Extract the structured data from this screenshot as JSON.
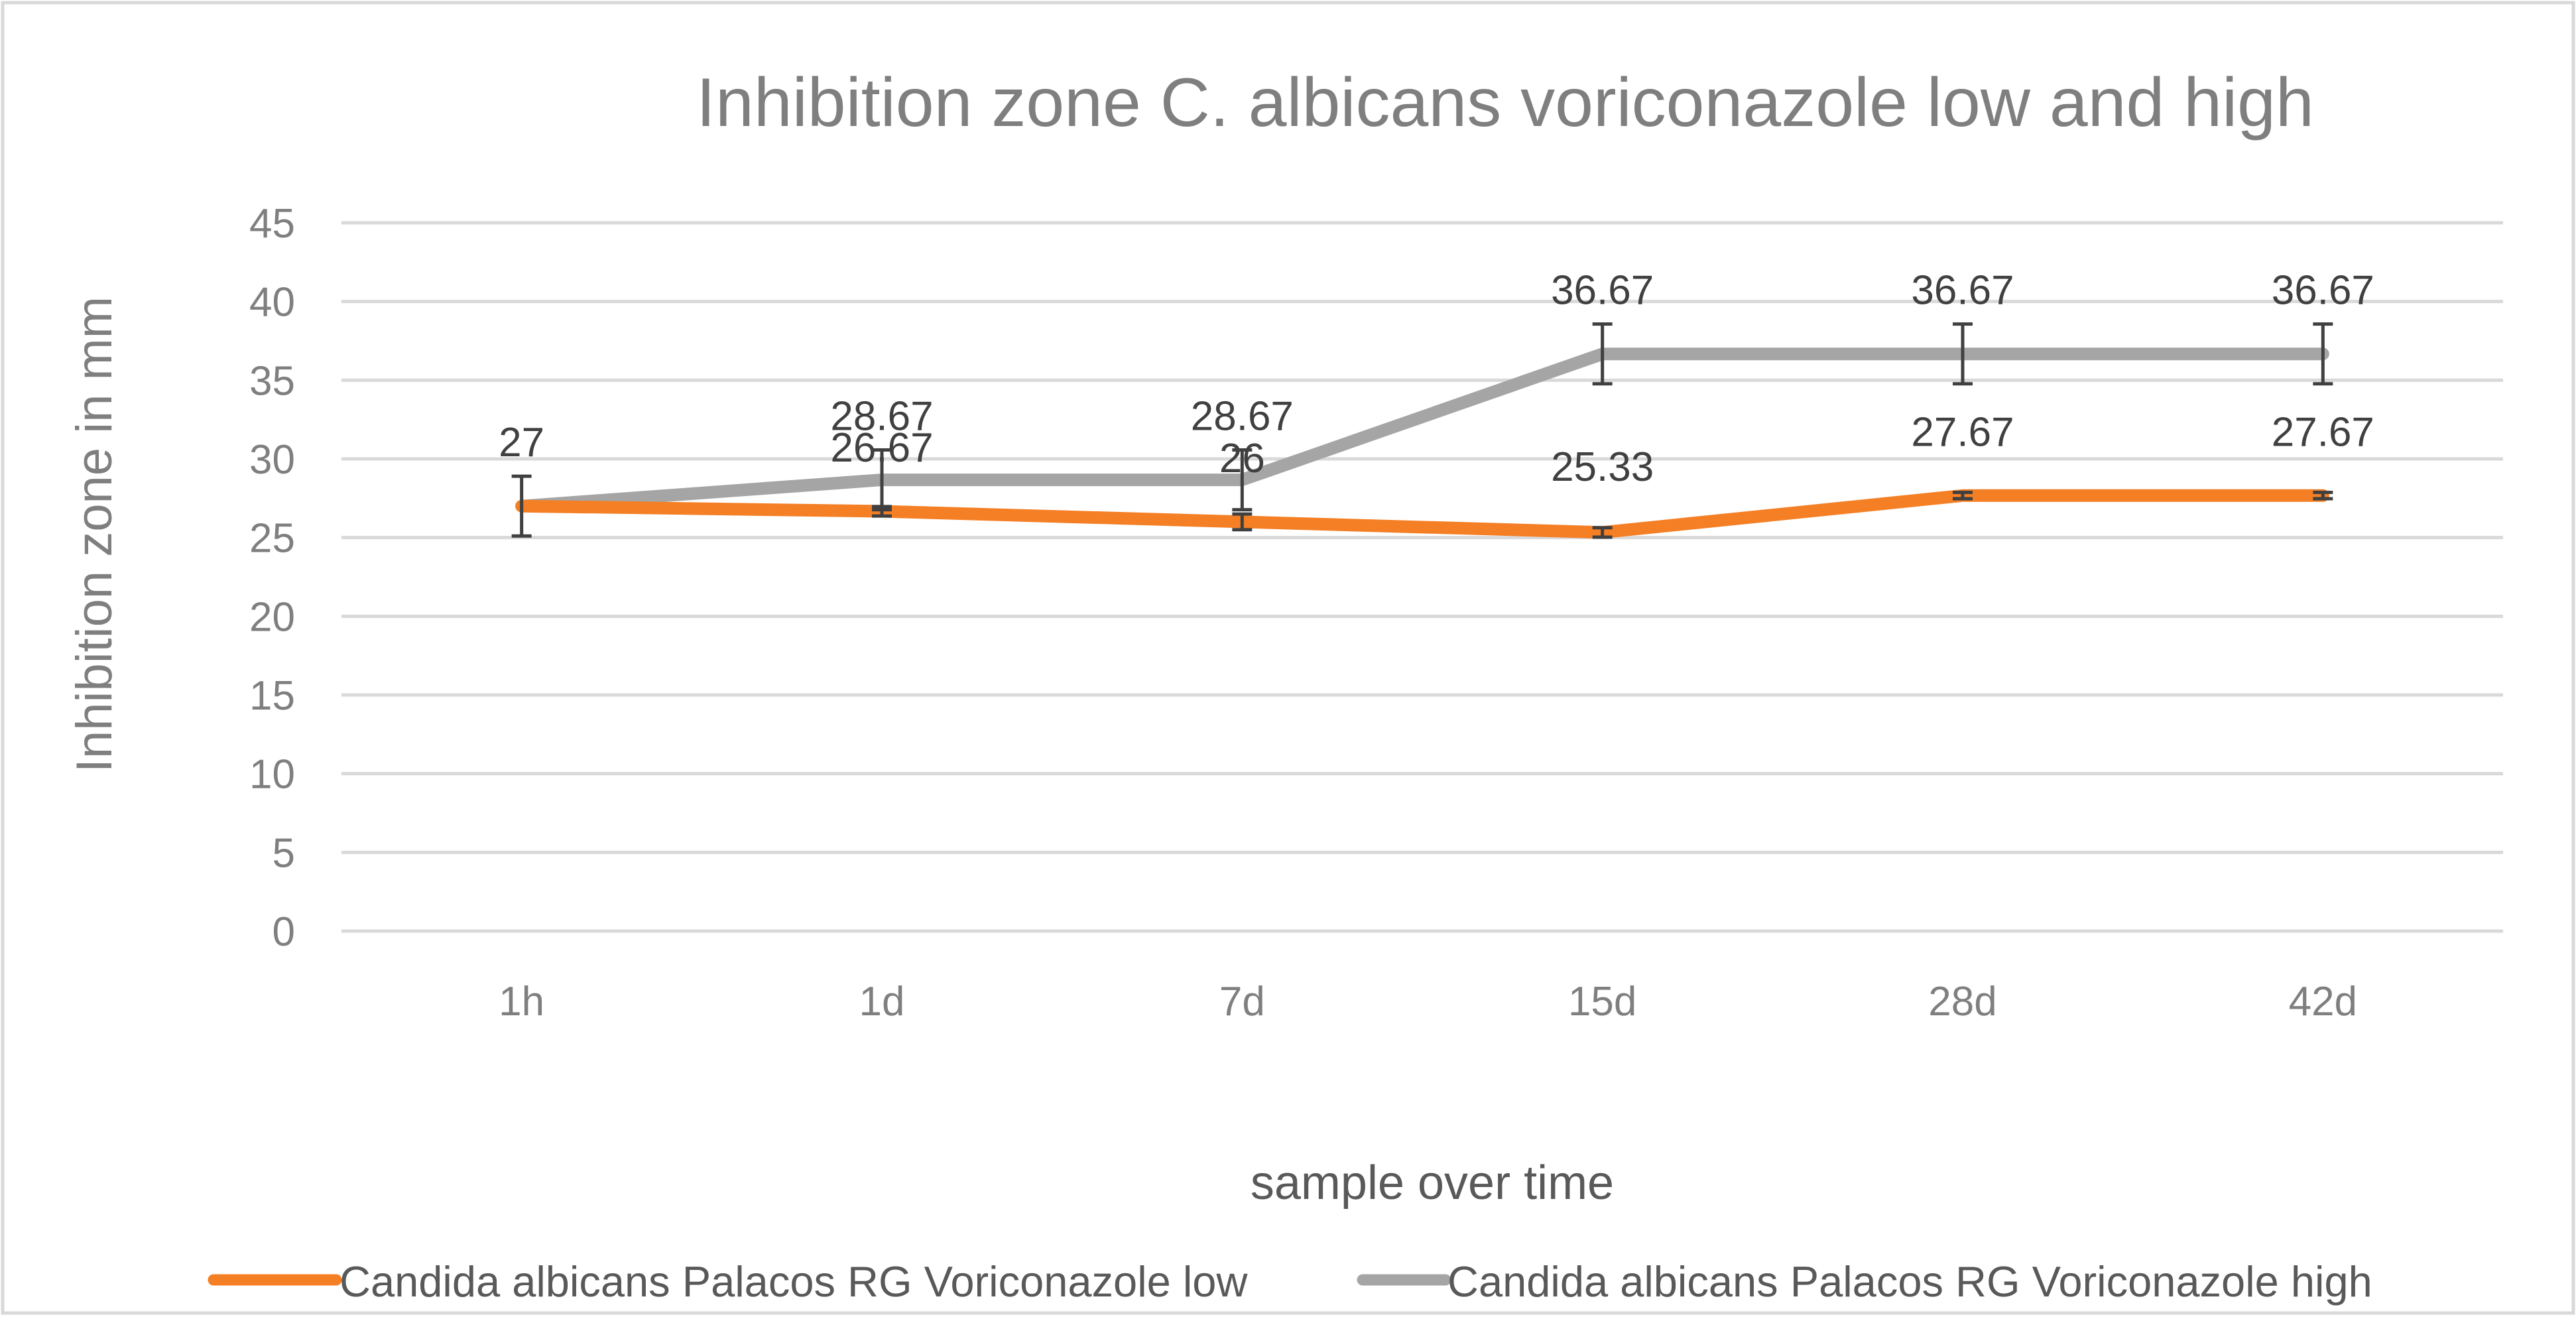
{
  "chart_data": {
    "type": "line",
    "title": "Inhibition zone  C. albicans voriconazole low and high",
    "xlabel": "sample over time",
    "ylabel": "Inhibition zone in mm",
    "categories": [
      "1h",
      "1d",
      "7d",
      "15d",
      "28d",
      "42d"
    ],
    "ylim": [
      0,
      45
    ],
    "yticks": [
      0,
      5,
      10,
      15,
      20,
      25,
      30,
      35,
      40,
      45
    ],
    "grid": true,
    "legend_position": "bottom",
    "series": [
      {
        "name": "Candida albicans Palacos RG Voriconazole low",
        "color": "#F47F25",
        "values": [
          27,
          26.67,
          26,
          25.33,
          27.67,
          27.67
        ],
        "labels": [
          "27",
          "26.67",
          "26",
          "25.33",
          "27.67",
          "27.67"
        ],
        "errors": [
          0,
          0.3,
          0.5,
          0.3,
          0.2,
          0.2
        ]
      },
      {
        "name": "Candida albicans Palacos RG Voriconazole high",
        "color": "#A5A5A5",
        "values": [
          27,
          28.67,
          28.67,
          36.67,
          36.67,
          36.67
        ],
        "labels": [
          "",
          "28.67",
          "28.67",
          "36.67",
          "36.67",
          "36.67"
        ],
        "errors": [
          1.9,
          1.9,
          1.9,
          1.9,
          1.9,
          1.9
        ]
      }
    ]
  }
}
